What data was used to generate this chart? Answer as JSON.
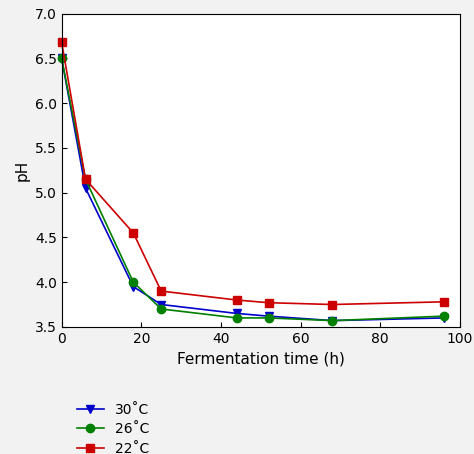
{
  "title": "",
  "xlabel": "Fermentation time (h)",
  "ylabel": "pH",
  "xlim": [
    0,
    100
  ],
  "ylim": [
    3.5,
    7.0
  ],
  "yticks": [
    3.5,
    4.0,
    4.5,
    5.0,
    5.5,
    6.0,
    6.5,
    7.0
  ],
  "xticks": [
    0,
    20,
    40,
    60,
    80,
    100
  ],
  "series": [
    {
      "label": "30˚C",
      "color": "#0000cc",
      "marker": "v",
      "x": [
        0,
        6,
        18,
        25,
        44,
        52,
        68,
        96
      ],
      "y": [
        6.5,
        5.05,
        3.95,
        3.75,
        3.65,
        3.62,
        3.57,
        3.6
      ]
    },
    {
      "label": "26˚C",
      "color": "#008000",
      "marker": "o",
      "x": [
        0,
        6,
        18,
        25,
        44,
        52,
        68,
        96
      ],
      "y": [
        6.5,
        5.15,
        4.0,
        3.7,
        3.6,
        3.6,
        3.57,
        3.62
      ]
    },
    {
      "label": "22˚C",
      "color": "#cc0000",
      "marker": "s",
      "x": [
        0,
        6,
        18,
        25,
        44,
        52,
        68,
        96
      ],
      "y": [
        6.68,
        5.15,
        4.55,
        3.9,
        3.8,
        3.77,
        3.75,
        3.78
      ]
    }
  ],
  "background_color": "#f2f2f2",
  "plot_bg_color": "#ffffff",
  "marker_size": 6,
  "line_width": 1.2,
  "xlabel_fontsize": 11,
  "ylabel_fontsize": 11,
  "tick_fontsize": 10,
  "legend_fontsize": 10
}
